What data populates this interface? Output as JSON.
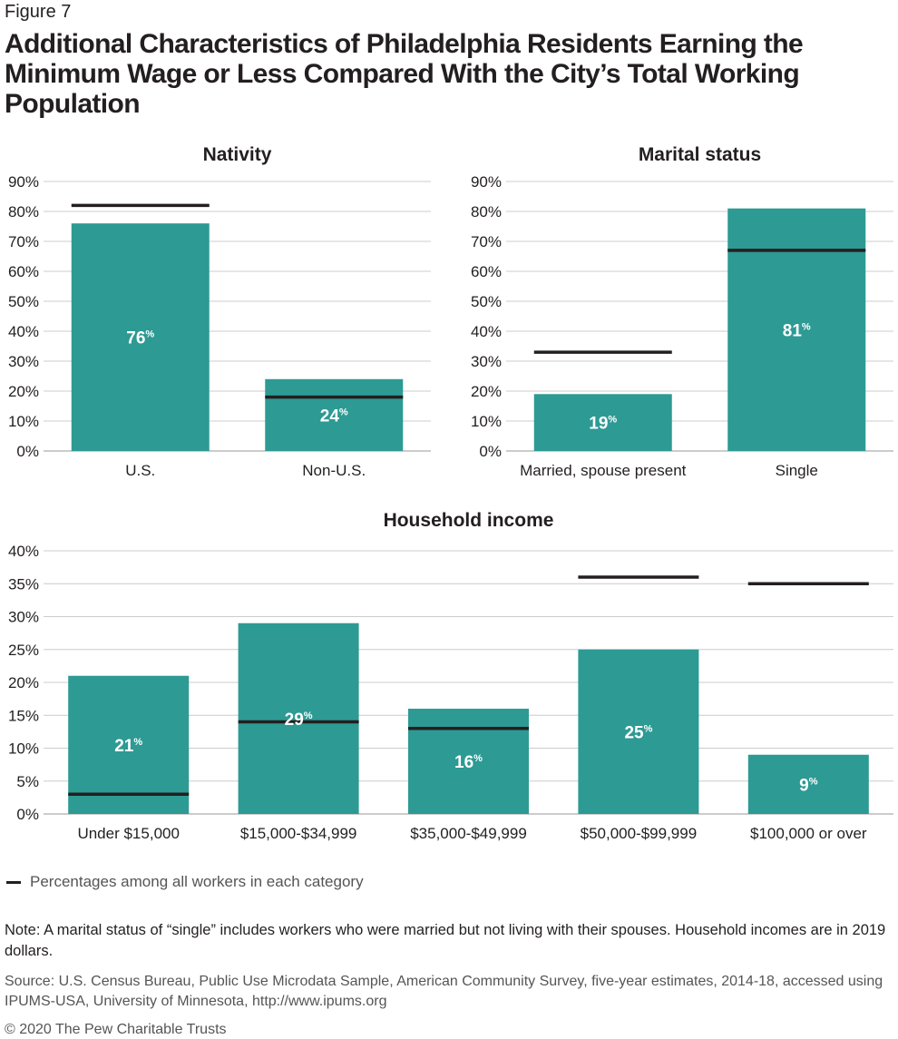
{
  "figure_label": "Figure 7",
  "title": "Additional Characteristics of Philadelphia Residents Earning the Minimum Wage or Less Compared With the City’s Total Working Population",
  "colors": {
    "bar": "#2d9a94",
    "reference_line": "#231f20",
    "grid": "#cccccc"
  },
  "chart_data": [
    {
      "type": "bar",
      "title": "Nativity",
      "categories": [
        "U.S.",
        "Non-U.S."
      ],
      "series": [
        {
          "values": [
            76,
            24
          ],
          "data_labels": [
            "76",
            "24"
          ]
        },
        {
          "name": "Percentages among all workers in each category",
          "values": [
            82,
            18
          ]
        }
      ],
      "yticks": [
        "0%",
        "10%",
        "20%",
        "30%",
        "40%",
        "50%",
        "60%",
        "70%",
        "80%",
        "90%"
      ],
      "ylim": [
        0,
        90
      ],
      "grid": true
    },
    {
      "type": "bar",
      "title": "Marital status",
      "categories": [
        "Married, spouse present",
        "Single"
      ],
      "series": [
        {
          "values": [
            19,
            81
          ],
          "data_labels": [
            "19",
            "81"
          ]
        },
        {
          "name": "Percentages among all workers in each category",
          "values": [
            33,
            67
          ]
        }
      ],
      "yticks": [
        "0%",
        "10%",
        "20%",
        "30%",
        "40%",
        "50%",
        "60%",
        "70%",
        "80%",
        "90%"
      ],
      "ylim": [
        0,
        90
      ],
      "grid": true
    },
    {
      "type": "bar",
      "title": "Household income",
      "categories": [
        "Under $15,000",
        "$15,000-$34,999",
        "$35,000-$49,999",
        "$50,000-$99,999",
        "$100,000 or over"
      ],
      "series": [
        {
          "values": [
            21,
            29,
            16,
            25,
            9
          ],
          "data_labels": [
            "21",
            "29",
            "16",
            "25",
            "9"
          ]
        },
        {
          "name": "Percentages among all workers in each category",
          "values": [
            3,
            14,
            13,
            36,
            35
          ]
        }
      ],
      "yticks": [
        "0%",
        "5%",
        "10%",
        "15%",
        "20%",
        "25%",
        "30%",
        "35%",
        "40%"
      ],
      "ylim": [
        0,
        40
      ],
      "grid": true
    }
  ],
  "percent_superscript": "%",
  "legend": {
    "label": "Percentages among all workers in each category"
  },
  "note": "Note: A marital status of “single” includes workers who were married but not living with their spouses. Household incomes are in 2019 dollars.",
  "source": "Source: U.S. Census Bureau, Public Use Microdata Sample, American Community Survey, five-year estimates, 2014-18, accessed using IPUMS-USA, University of Minnesota, http://www.ipums.org",
  "copyright": "© 2020 The Pew Charitable Trusts"
}
